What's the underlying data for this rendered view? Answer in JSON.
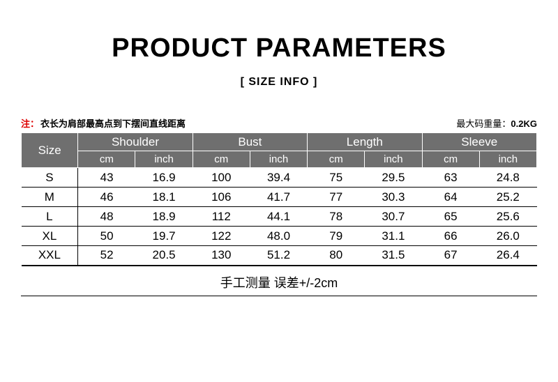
{
  "title": "PRODUCT PARAMETERS",
  "subtitle": "[ SIZE  INFO ]",
  "note_left_prefix": "注：",
  "note_left": "衣长为肩部最高点到下摆间直线距离",
  "note_right_label": "最大码重量：",
  "note_right_value": "0.2KG",
  "table": {
    "size_header": "Size",
    "groups": [
      "Shoulder",
      "Bust",
      "Length",
      "Sleeve"
    ],
    "sub_units": [
      "cm",
      "inch"
    ],
    "rows": [
      {
        "size": "S",
        "vals": [
          "43",
          "16.9",
          "100",
          "39.4",
          "75",
          "29.5",
          "63",
          "24.8"
        ]
      },
      {
        "size": "M",
        "vals": [
          "46",
          "18.1",
          "106",
          "41.7",
          "77",
          "30.3",
          "64",
          "25.2"
        ]
      },
      {
        "size": "L",
        "vals": [
          "48",
          "18.9",
          "112",
          "44.1",
          "78",
          "30.7",
          "65",
          "25.6"
        ]
      },
      {
        "size": "XL",
        "vals": [
          "50",
          "19.7",
          "122",
          "48.0",
          "79",
          "31.1",
          "66",
          "26.0"
        ]
      },
      {
        "size": "XXL",
        "vals": [
          "52",
          "20.5",
          "130",
          "51.2",
          "80",
          "31.5",
          "67",
          "26.4"
        ]
      }
    ],
    "col_widths_pct": [
      11,
      11.125,
      11.125,
      11.125,
      11.125,
      11.125,
      11.125,
      11.125,
      11.125
    ],
    "header_bg": "#6f6f6f",
    "header_fg": "#ffffff",
    "body_border_color": "#000000",
    "title_fontsize": 38,
    "subtitle_fontsize": 16,
    "body_fontsize": 17
  },
  "footer_note": "手工测量 误差+/-2cm"
}
